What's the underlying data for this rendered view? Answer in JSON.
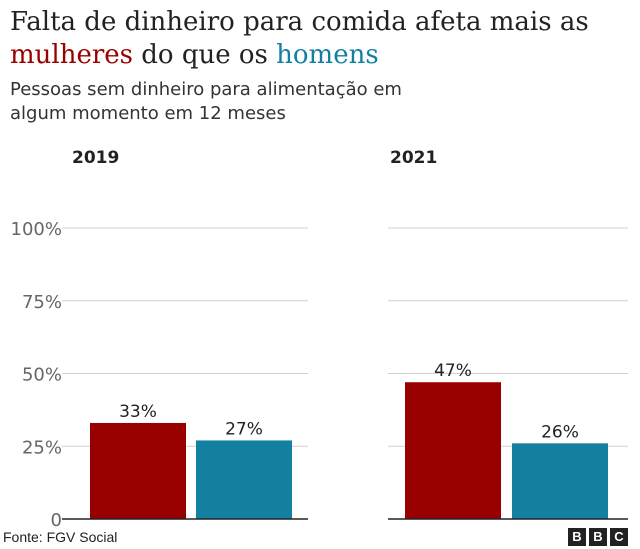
{
  "header": {
    "title_part1": "Falta de dinheiro para comida afeta mais as ",
    "title_women": "mulheres",
    "title_part2": " do que os ",
    "title_men": "homens",
    "subtitle": "Pessoas sem dinheiro para alimentação em algum momento em 12 meses"
  },
  "footer": {
    "source": "Fonte: FGV Social",
    "logo_letters": [
      "B",
      "B",
      "C"
    ]
  },
  "colors": {
    "women": "#990000",
    "men": "#1380a1",
    "grid": "#d0d0d0",
    "tick_text": "#666666",
    "axis": "#222222"
  },
  "chart_data": [
    {
      "type": "bar",
      "title": "2019",
      "categories": [
        "mulheres",
        "homens"
      ],
      "values": [
        33,
        27
      ],
      "value_labels": [
        "33%",
        "27%"
      ],
      "bar_colors": [
        "#990000",
        "#1380a1"
      ],
      "ylim": [
        0,
        100
      ],
      "y_ticks": [
        0,
        25,
        50,
        75,
        100
      ],
      "y_tick_labels": [
        "0",
        "25%",
        "50%",
        "75%",
        "100%"
      ],
      "grid": true
    },
    {
      "type": "bar",
      "title": "2021",
      "categories": [
        "mulheres",
        "homens"
      ],
      "values": [
        47,
        26
      ],
      "value_labels": [
        "47%",
        "26%"
      ],
      "bar_colors": [
        "#990000",
        "#1380a1"
      ],
      "ylim": [
        0,
        100
      ],
      "y_ticks": [
        0,
        25,
        50,
        75,
        100
      ],
      "grid": true
    }
  ]
}
